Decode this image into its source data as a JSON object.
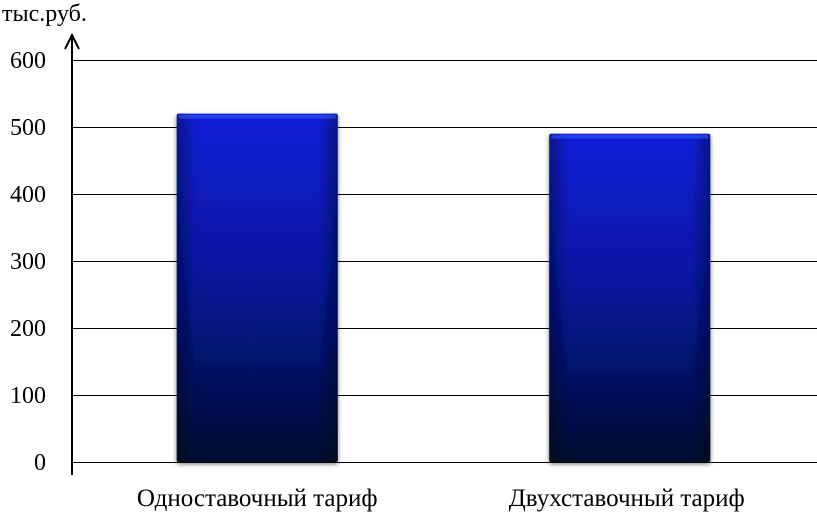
{
  "chart_data": {
    "type": "bar",
    "title": "",
    "xlabel": "",
    "ylabel": "тыс.руб.",
    "categories": [
      "Одноставочный тариф",
      "Двухставочный тариф"
    ],
    "values": [
      520,
      490
    ],
    "ylim": [
      0,
      600
    ],
    "yticks": [
      0,
      100,
      200,
      300,
      400,
      500,
      600
    ],
    "grid": true,
    "legend": "none",
    "colors": {
      "bar_top": "#0a1fd6",
      "bar_bottom": "#050d2e",
      "grid": "#000000",
      "axis": "#000000"
    }
  }
}
